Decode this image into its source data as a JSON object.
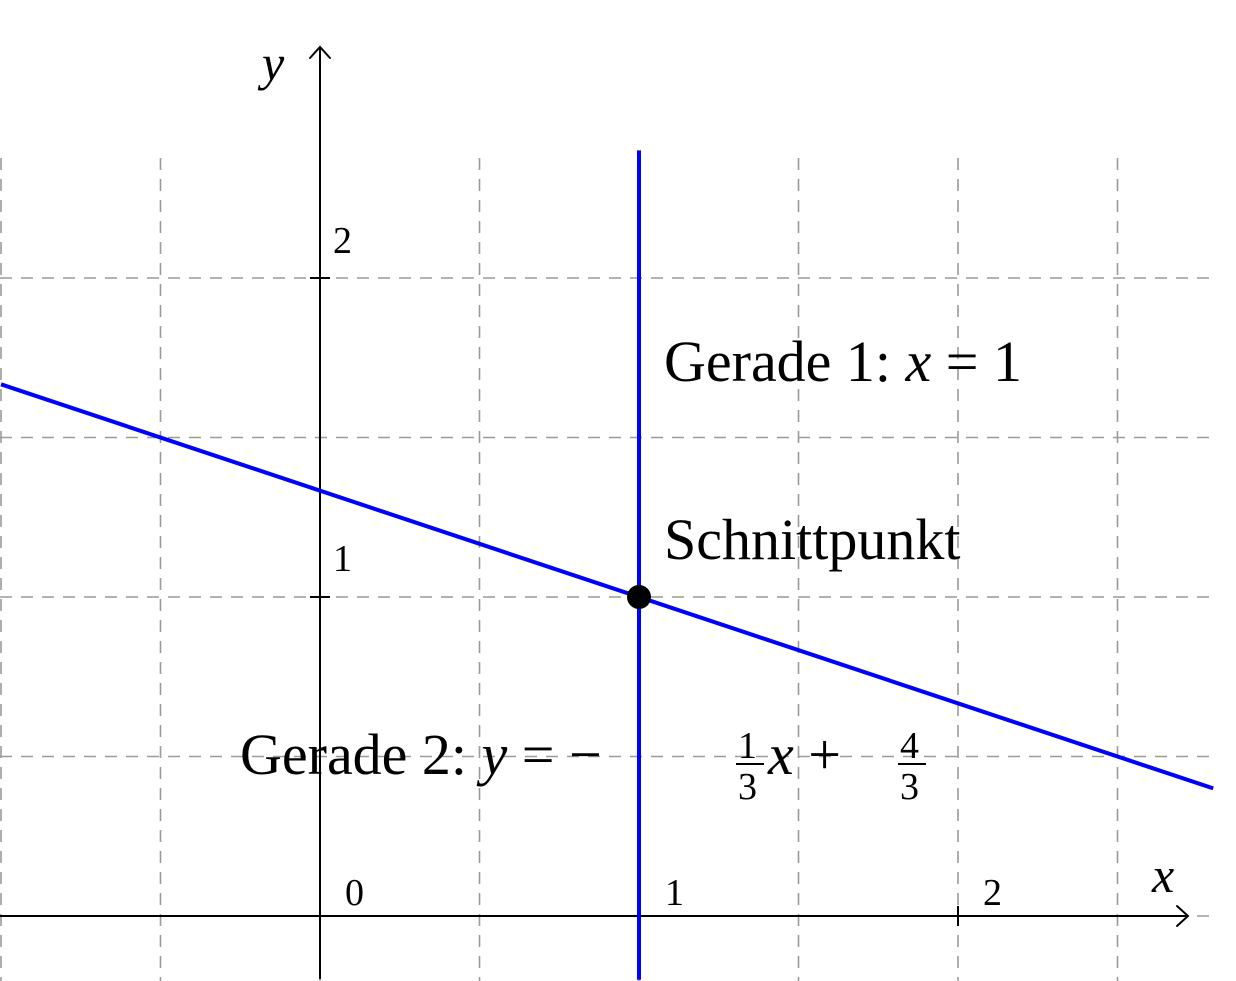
{
  "chart_data": {
    "type": "line",
    "title": "",
    "xlabel": "x",
    "ylabel": "y",
    "xlim": [
      -1.0,
      2.8
    ],
    "ylim": [
      -0.2,
      2.6
    ],
    "grid": true,
    "grid_step": 0.5,
    "x_ticks": [
      {
        "value": 0,
        "label": "0"
      },
      {
        "value": 1,
        "label": "1"
      },
      {
        "value": 2,
        "label": "2"
      }
    ],
    "y_ticks": [
      {
        "value": 1,
        "label": "1"
      },
      {
        "value": 2,
        "label": "2"
      }
    ],
    "series": [
      {
        "name": "Gerade 1",
        "kind": "vertical",
        "x": 1,
        "y_range": [
          -0.2,
          2.4
        ],
        "color": "#0000ff"
      },
      {
        "name": "Gerade 2",
        "kind": "line",
        "slope_num": -1,
        "slope_den": 3,
        "intercept_num": 4,
        "intercept_den": 3,
        "x_range": [
          -1.0,
          2.8
        ],
        "color": "#0000ff"
      }
    ],
    "points": [
      {
        "name": "Schnittpunkt",
        "x": 1,
        "y": 1,
        "color": "#000000"
      }
    ],
    "annotations": {
      "line1_prefix": "Gerade 1: ",
      "line1_var": "x",
      "line1_rest": " = 1",
      "point_label": "Schnittpunkt",
      "line2_prefix": "Gerade 2: ",
      "line2_var_y": "y",
      "line2_eq": " = −",
      "frac1_num": "1",
      "frac1_den": "3",
      "line2_var_x": "x",
      "line2_plus": " + ",
      "frac2_num": "4",
      "frac2_den": "3"
    }
  }
}
